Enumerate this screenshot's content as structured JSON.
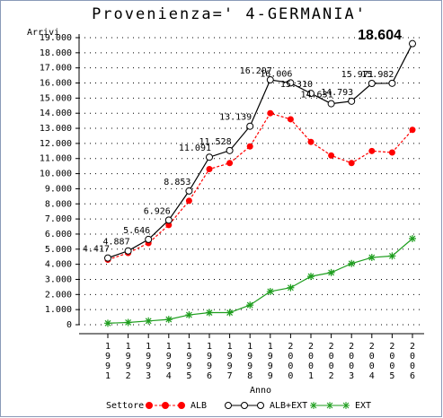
{
  "chart_data": {
    "type": "line",
    "title": "Provenienza=' 4-GERMANIA'",
    "y_label": "Arrivi",
    "x_label": "Anno",
    "legend_title": "Settore",
    "categories": [
      "1991",
      "1992",
      "1993",
      "1994",
      "1995",
      "1996",
      "1997",
      "1998",
      "1999",
      "2000",
      "2001",
      "2002",
      "2003",
      "2004",
      "2005",
      "2006"
    ],
    "series": [
      {
        "name": "ALB",
        "color": "#ff0000",
        "marker": "dot",
        "dash": true,
        "values": [
          4300,
          4750,
          5400,
          6600,
          8200,
          10300,
          10700,
          11800,
          14000,
          13600,
          12100,
          11200,
          10700,
          11500,
          11400,
          12900
        ]
      },
      {
        "name": "ALB+EXT",
        "color": "#000000",
        "marker": "circle",
        "dash": false,
        "values": [
          4417,
          4887,
          5646,
          6926,
          8853,
          11091,
          11528,
          13139,
          16207,
          16006,
          15310,
          14631,
          14793,
          15971,
          15982,
          18604
        ],
        "value_labels": [
          "4.417",
          "4.887",
          "5.646",
          "6.926",
          "8.853",
          "11.091",
          "11.528",
          "13.139",
          "16.207",
          "16.006",
          "15.310",
          "14.631",
          "14.793",
          "15.971",
          "15.982",
          "18.604"
        ]
      },
      {
        "name": "EXT",
        "color": "#1e9e1e",
        "marker": "star",
        "dash": false,
        "values": [
          100,
          150,
          250,
          350,
          650,
          800,
          800,
          1300,
          2200,
          2450,
          3200,
          3450,
          4050,
          4450,
          4550,
          5700
        ]
      }
    ],
    "ylim": [
      0,
      19000
    ],
    "yticks": [
      0,
      {
        "value": 1000,
        "label": "1.000"
      },
      {
        "value": 2000,
        "label": "2.000"
      },
      {
        "value": 3000,
        "label": "3.000"
      },
      {
        "value": 4000,
        "label": "4.000"
      },
      {
        "value": 5000,
        "label": "5.000"
      },
      {
        "value": 6000,
        "label": "6.000"
      },
      {
        "value": 7000,
        "label": "7.000"
      },
      {
        "value": 8000,
        "label": "8.000"
      },
      {
        "value": 9000,
        "label": "9.000"
      },
      {
        "value": 10000,
        "label": "10.000"
      },
      {
        "value": 11000,
        "label": "11.000"
      },
      {
        "value": 12000,
        "label": "12.000"
      },
      {
        "value": 13000,
        "label": "13.000"
      },
      {
        "value": 14000,
        "label": "14.000"
      },
      {
        "value": 15000,
        "label": "15.000"
      },
      {
        "value": 16000,
        "label": "16.000"
      },
      {
        "value": 17000,
        "label": "17.000"
      },
      {
        "value": 18000,
        "label": "18.000"
      },
      {
        "value": 19000,
        "label": "19.000"
      }
    ],
    "grid": true
  }
}
